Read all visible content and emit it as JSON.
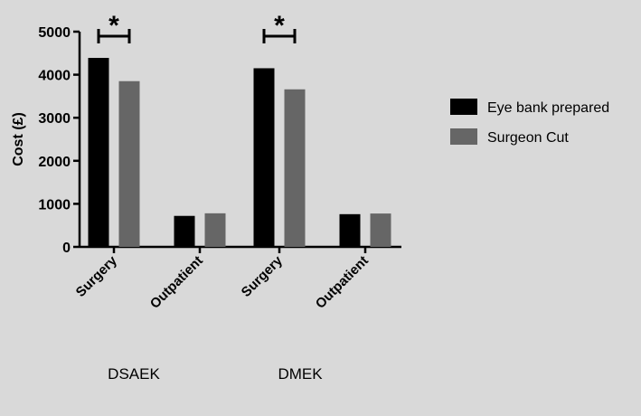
{
  "chart_data": {
    "type": "bar",
    "ylabel": "Cost (£)",
    "ylim": [
      0,
      5000
    ],
    "yticks": [
      0,
      1000,
      2000,
      3000,
      4000,
      5000
    ],
    "categories": [
      {
        "label": "Surgery",
        "group": "DSAEK"
      },
      {
        "label": "Outpatient",
        "group": "DSAEK"
      },
      {
        "label": "Surgery",
        "group": "DMEK"
      },
      {
        "label": "Outpatient",
        "group": "DMEK"
      }
    ],
    "groups": [
      "DSAEK",
      "DMEK"
    ],
    "series": [
      {
        "name": "Eye bank prepared",
        "color": "#000000",
        "values": [
          4390,
          720,
          4150,
          760
        ]
      },
      {
        "name": "Surgeon Cut",
        "color": "#666666",
        "values": [
          3850,
          780,
          3660,
          775
        ]
      }
    ],
    "significance": [
      {
        "category_index": 0,
        "marker": "*"
      },
      {
        "category_index": 2,
        "marker": "*"
      }
    ],
    "legend_position": "right"
  }
}
